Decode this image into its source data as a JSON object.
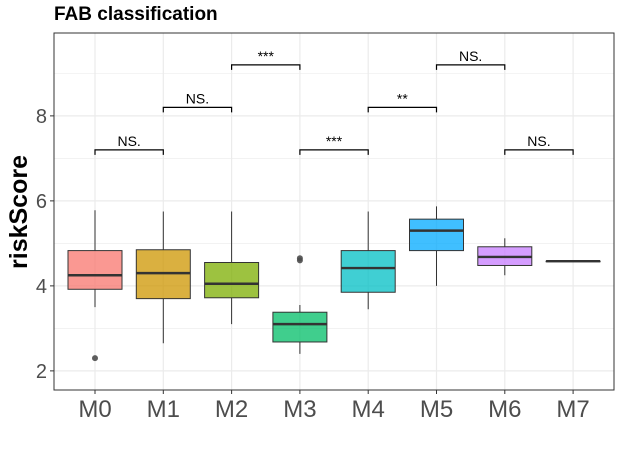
{
  "chart_data": {
    "type": "box",
    "title": "FAB classification",
    "xlabel": "",
    "ylabel": "riskScore",
    "ylim": [
      1.55,
      9.95
    ],
    "yticks": [
      2,
      4,
      6,
      8
    ],
    "grid": true,
    "legend": "none",
    "categories": [
      "M0",
      "M1",
      "M2",
      "M3",
      "M4",
      "M5",
      "M6",
      "M7"
    ],
    "colors": [
      "#F8766D",
      "#CD9600",
      "#7CAE00",
      "#00BE67",
      "#00BFC4",
      "#00A9FF",
      "#C77CFF",
      "#FF61CC"
    ],
    "boxes": [
      {
        "category": "M0",
        "whisker_low": 3.5,
        "q1": 3.92,
        "median": 4.25,
        "q3": 4.83,
        "whisker_high": 5.78,
        "outliers": [
          2.3
        ]
      },
      {
        "category": "M1",
        "whisker_low": 2.65,
        "q1": 3.7,
        "median": 4.3,
        "q3": 4.85,
        "whisker_high": 5.75,
        "outliers": []
      },
      {
        "category": "M2",
        "whisker_low": 3.1,
        "q1": 3.72,
        "median": 4.05,
        "q3": 4.55,
        "whisker_high": 5.75,
        "outliers": []
      },
      {
        "category": "M3",
        "whisker_low": 2.4,
        "q1": 2.68,
        "median": 3.1,
        "q3": 3.38,
        "whisker_high": 3.55,
        "outliers": [
          4.6,
          4.65
        ]
      },
      {
        "category": "M4",
        "whisker_low": 3.45,
        "q1": 3.85,
        "median": 4.42,
        "q3": 4.83,
        "whisker_high": 5.75,
        "outliers": []
      },
      {
        "category": "M5",
        "whisker_low": 4.0,
        "q1": 4.83,
        "median": 5.3,
        "q3": 5.57,
        "whisker_high": 5.87,
        "outliers": []
      },
      {
        "category": "M6",
        "whisker_low": 4.25,
        "q1": 4.48,
        "median": 4.68,
        "q3": 4.92,
        "whisker_high": 5.12,
        "outliers": []
      },
      {
        "category": "M7",
        "whisker_low": 4.58,
        "q1": 4.58,
        "median": 4.58,
        "q3": 4.58,
        "whisker_high": 4.58,
        "outliers": []
      }
    ],
    "comparisons": [
      {
        "from": "M0",
        "to": "M1",
        "y": 7.2,
        "label": "NS."
      },
      {
        "from": "M1",
        "to": "M2",
        "y": 8.2,
        "label": "NS."
      },
      {
        "from": "M2",
        "to": "M3",
        "y": 9.2,
        "label": "***"
      },
      {
        "from": "M3",
        "to": "M4",
        "y": 7.2,
        "label": "***"
      },
      {
        "from": "M4",
        "to": "M5",
        "y": 8.2,
        "label": "**"
      },
      {
        "from": "M5",
        "to": "M6",
        "y": 9.2,
        "label": "NS."
      },
      {
        "from": "M6",
        "to": "M7",
        "y": 7.2,
        "label": "NS."
      }
    ]
  }
}
